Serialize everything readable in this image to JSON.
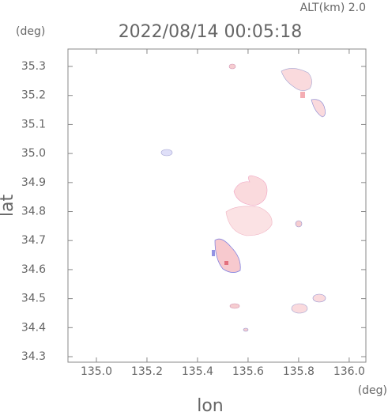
{
  "chart_data": {
    "type": "map",
    "title": "2022/08/14 00:05:18",
    "subtitle": "ALT(km) 2.0",
    "y_unit": "(deg)",
    "x_unit": "(deg)",
    "x_label": "lon",
    "y_label": "lat",
    "xlim": [
      134.8875,
      136.066
    ],
    "ylim": [
      34.281,
      35.36
    ],
    "xticks": [
      {
        "value": 135.0,
        "label": "135.0"
      },
      135.2,
      135.4,
      135.6,
      135.8,
      {
        "value": 136.0,
        "label": "136.0"
      }
    ],
    "yticks": [
      34.3,
      34.4,
      34.5,
      34.6,
      34.7,
      34.8,
      34.9,
      {
        "value": 35.0,
        "label": "35.0"
      },
      35.1,
      35.2,
      35.3
    ]
  }
}
